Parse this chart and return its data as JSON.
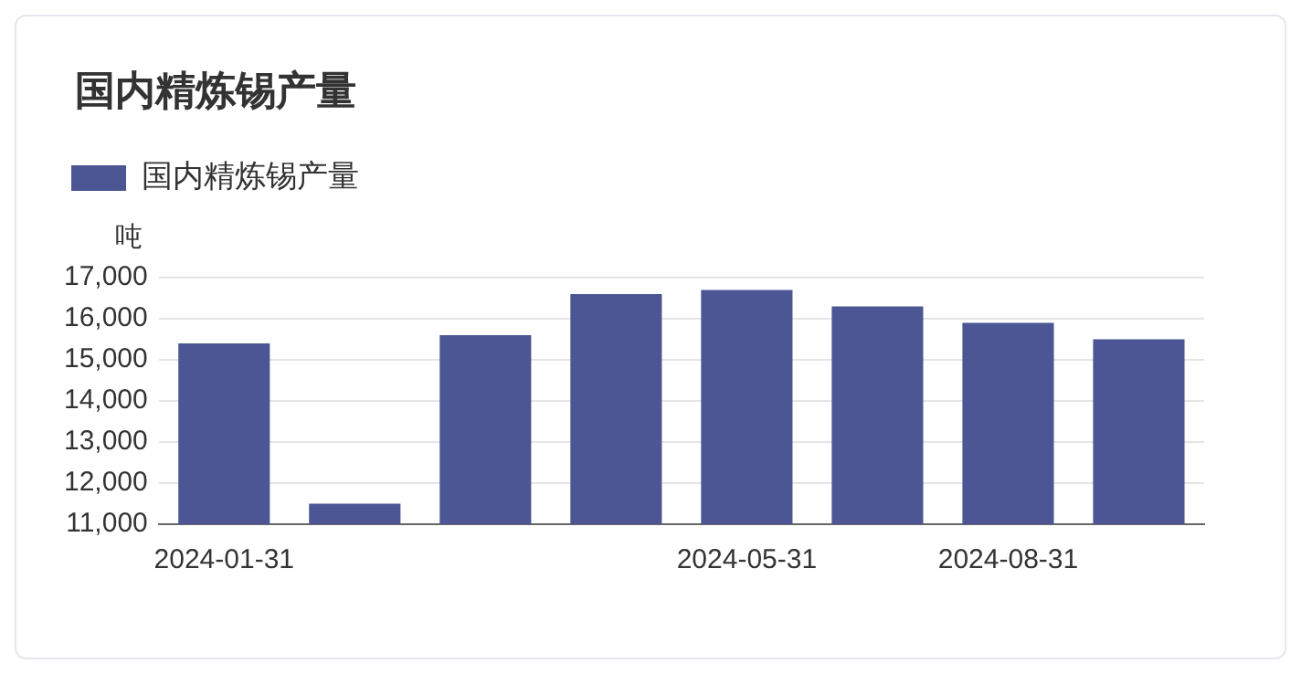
{
  "chart_data": {
    "type": "bar",
    "title": "国内精炼锡产量",
    "ylabel": "吨",
    "categories": [
      "2024-01-31",
      null,
      null,
      null,
      "2024-05-31",
      null,
      "2024-08-31",
      null
    ],
    "series": [
      {
        "name": "国内精炼锡产量",
        "color": "#4c5694",
        "values": [
          15400,
          11500,
          15600,
          16600,
          16700,
          16300,
          15900,
          15500
        ]
      }
    ],
    "ylim": [
      11000,
      17000
    ],
    "yticks": [
      {
        "value": 11000,
        "label": "11,000"
      },
      {
        "value": 12000,
        "label": "12,000"
      },
      {
        "value": 13000,
        "label": "13,000"
      },
      {
        "value": 14000,
        "label": "14,000"
      },
      {
        "value": 15000,
        "label": "15,000"
      },
      {
        "value": 16000,
        "label": "16,000"
      },
      {
        "value": 17000,
        "label": "17,000"
      }
    ],
    "grid": "y",
    "legend": "top left"
  }
}
